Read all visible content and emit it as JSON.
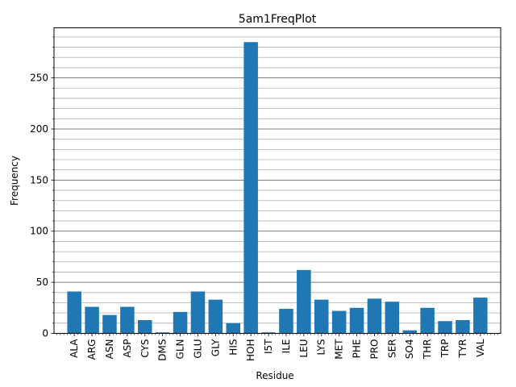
{
  "chart_data": {
    "type": "bar",
    "title": "5am1FreqPlot",
    "xlabel": "Residue",
    "ylabel": "Frequency",
    "categories": [
      "ALA",
      "ARG",
      "ASN",
      "ASP",
      "CYS",
      "DMS",
      "GLN",
      "GLU",
      "GLY",
      "HIS",
      "HOH",
      "I5T",
      "ILE",
      "LEU",
      "LYS",
      "MET",
      "PHE",
      "PRO",
      "SER",
      "SO4",
      "THR",
      "TRP",
      "TYR",
      "VAL"
    ],
    "values": [
      41,
      26,
      18,
      26,
      13,
      1,
      21,
      41,
      33,
      10,
      285,
      1,
      24,
      62,
      33,
      22,
      25,
      34,
      31,
      3,
      25,
      12,
      13,
      35
    ],
    "ylim": [
      0,
      299
    ],
    "yticks": [
      0,
      50,
      100,
      150,
      200,
      250
    ],
    "yminor_step": 10,
    "grid": true,
    "bar_color": "#1f77b4",
    "major_grid_color": "#555555",
    "minor_grid_color": "#b0b0b0"
  }
}
